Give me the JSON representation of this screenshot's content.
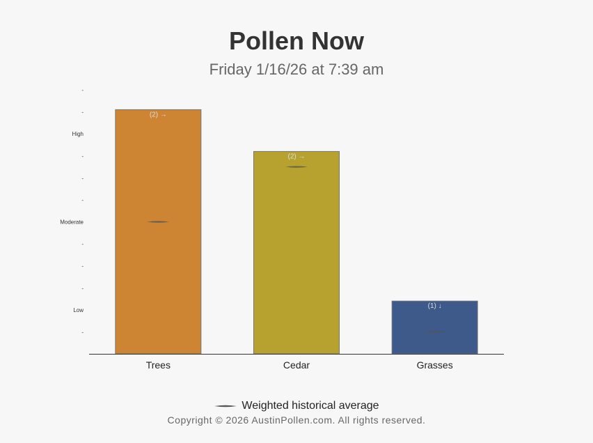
{
  "title": "Pollen Now",
  "subtitle": "Friday 1/16/26 at 7:39 am",
  "legend": {
    "label": "Weighted historical average"
  },
  "footer": {
    "copyright": "Copyright © 2026 AustinPollen.com.  All rights reserved."
  },
  "chart_data": {
    "type": "bar",
    "categories": [
      "Trees",
      "Cedar",
      "Grasses"
    ],
    "values": [
      11.1,
      9.2,
      2.4
    ],
    "historical_average": [
      6.0,
      8.5,
      1.0
    ],
    "bar_labels": [
      "(2) →",
      "(2) →",
      "(1) ↓"
    ],
    "colors": [
      "#cd8534",
      "#b7a22f",
      "#3d5a8a"
    ],
    "ylim": [
      0,
      12
    ],
    "yticks": [
      {
        "value": 1,
        "label": "-"
      },
      {
        "value": 2,
        "label": "Low"
      },
      {
        "value": 3,
        "label": "-"
      },
      {
        "value": 4,
        "label": "-"
      },
      {
        "value": 5,
        "label": "-"
      },
      {
        "value": 6,
        "label": "Moderate"
      },
      {
        "value": 7,
        "label": "-"
      },
      {
        "value": 8,
        "label": "-"
      },
      {
        "value": 9,
        "label": "-"
      },
      {
        "value": 10,
        "label": "High"
      },
      {
        "value": 11,
        "label": "-"
      },
      {
        "value": 12,
        "label": "-"
      }
    ],
    "xlabel": "",
    "ylabel": "",
    "grid": false,
    "legend_position": "bottom"
  }
}
